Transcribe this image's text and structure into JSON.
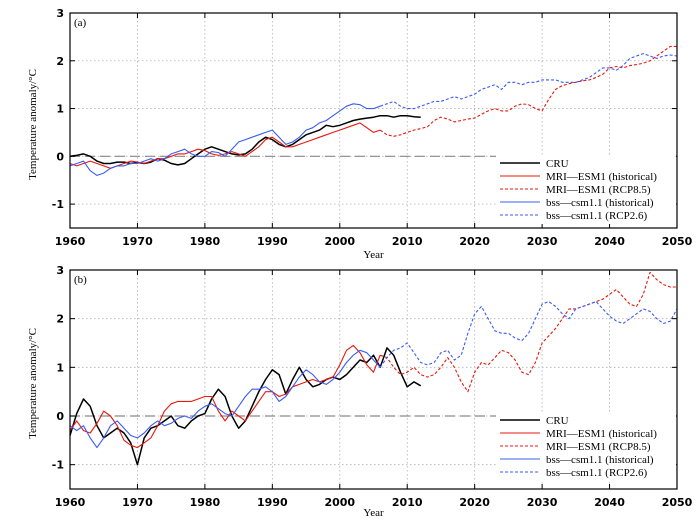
{
  "chart_data": [
    {
      "type": "line",
      "panel_label": "(a)",
      "xlabel": "Year",
      "ylabel": "Temperature anomaly/°C",
      "xlim": [
        1960,
        2050
      ],
      "ylim": [
        -1.5,
        3
      ],
      "xticks": [
        1960,
        1970,
        1980,
        1990,
        2000,
        2010,
        2020,
        2030,
        2040,
        2050
      ],
      "yticks": [
        -1,
        0,
        1,
        2,
        3
      ],
      "grid": true,
      "legend_position": "bottom-right",
      "zero_line": true,
      "series": [
        {
          "name": "CRU",
          "color": "#000000",
          "dash": "solid",
          "x": [
            1960,
            1961,
            1962,
            1963,
            1964,
            1965,
            1966,
            1967,
            1968,
            1969,
            1970,
            1971,
            1972,
            1973,
            1974,
            1975,
            1976,
            1977,
            1978,
            1979,
            1980,
            1981,
            1982,
            1983,
            1984,
            1985,
            1986,
            1987,
            1988,
            1989,
            1990,
            1991,
            1992,
            1993,
            1994,
            1995,
            1996,
            1997,
            1998,
            1999,
            2000,
            2001,
            2002,
            2003,
            2004,
            2005,
            2006,
            2007,
            2008,
            2009,
            2010,
            2011,
            2012
          ],
          "y": [
            0.0,
            0.02,
            0.05,
            0.0,
            -0.1,
            -0.15,
            -0.15,
            -0.12,
            -0.12,
            -0.15,
            -0.13,
            -0.15,
            -0.12,
            -0.05,
            -0.08,
            -0.15,
            -0.18,
            -0.15,
            -0.05,
            0.05,
            0.15,
            0.2,
            0.15,
            0.1,
            0.05,
            0.03,
            0.05,
            0.15,
            0.3,
            0.4,
            0.35,
            0.25,
            0.2,
            0.25,
            0.35,
            0.45,
            0.5,
            0.55,
            0.65,
            0.62,
            0.65,
            0.7,
            0.75,
            0.78,
            0.8,
            0.82,
            0.85,
            0.85,
            0.82,
            0.85,
            0.85,
            0.83,
            0.82
          ]
        },
        {
          "name": "MRI—ESM1 (historical)",
          "color": "#e8180c",
          "dash": "solid",
          "x": [
            1960,
            1961,
            1962,
            1963,
            1964,
            1965,
            1966,
            1967,
            1968,
            1969,
            1970,
            1971,
            1972,
            1973,
            1974,
            1975,
            1976,
            1977,
            1978,
            1979,
            1980,
            1981,
            1982,
            1983,
            1984,
            1985,
            1986,
            1987,
            1988,
            1989,
            1990,
            1991,
            1992,
            1993,
            1994,
            1995,
            1996,
            1997,
            1998,
            1999,
            2000,
            2001,
            2002,
            2003,
            2004,
            2005,
            2006
          ],
          "y": [
            -0.15,
            -0.2,
            -0.15,
            -0.1,
            -0.15,
            -0.2,
            -0.25,
            -0.2,
            -0.15,
            -0.1,
            -0.12,
            -0.15,
            -0.1,
            -0.05,
            -0.05,
            0.0,
            0.05,
            0.05,
            0.1,
            0.15,
            0.12,
            0.05,
            0.02,
            0.05,
            0.1,
            0.05,
            0.0,
            0.1,
            0.2,
            0.35,
            0.4,
            0.3,
            0.2,
            0.2,
            0.25,
            0.3,
            0.35,
            0.4,
            0.45,
            0.5,
            0.55,
            0.6,
            0.65,
            0.7,
            0.6,
            0.5,
            0.55
          ]
        },
        {
          "name": "MRI—ESM1 (RCP8.5)",
          "color": "#e8180c",
          "dash": "dashed",
          "x": [
            2006,
            2007,
            2008,
            2009,
            2010,
            2011,
            2012,
            2013,
            2014,
            2015,
            2016,
            2017,
            2018,
            2019,
            2020,
            2021,
            2022,
            2023,
            2024,
            2025,
            2026,
            2027,
            2028,
            2029,
            2030,
            2031,
            2032,
            2033,
            2034,
            2035,
            2036,
            2037,
            2038,
            2039,
            2040,
            2041,
            2042,
            2043,
            2044,
            2045,
            2046,
            2047,
            2048,
            2049,
            2050
          ],
          "y": [
            0.55,
            0.45,
            0.42,
            0.45,
            0.5,
            0.55,
            0.58,
            0.62,
            0.75,
            0.82,
            0.78,
            0.72,
            0.75,
            0.78,
            0.8,
            0.88,
            0.95,
            1.0,
            0.95,
            0.95,
            1.05,
            1.1,
            1.08,
            1.0,
            0.95,
            1.2,
            1.4,
            1.48,
            1.52,
            1.55,
            1.58,
            1.6,
            1.65,
            1.72,
            1.85,
            1.88,
            1.85,
            1.9,
            1.92,
            1.95,
            2.0,
            2.1,
            2.2,
            2.3,
            2.3
          ]
        },
        {
          "name": "bss—csm1.1 (historical)",
          "color": "#3a5cf5",
          "dash": "solid",
          "x": [
            1960,
            1961,
            1962,
            1963,
            1964,
            1965,
            1966,
            1967,
            1968,
            1969,
            1970,
            1971,
            1972,
            1973,
            1974,
            1975,
            1976,
            1977,
            1978,
            1979,
            1980,
            1981,
            1982,
            1983,
            1984,
            1985,
            1986,
            1987,
            1988,
            1989,
            1990,
            1991,
            1992,
            1993,
            1994,
            1995,
            1996,
            1997,
            1998,
            1999,
            2000,
            2001,
            2002,
            2003,
            2004,
            2005,
            2006
          ],
          "y": [
            -0.2,
            -0.15,
            -0.1,
            -0.3,
            -0.4,
            -0.35,
            -0.25,
            -0.2,
            -0.2,
            -0.15,
            -0.15,
            -0.1,
            -0.05,
            -0.1,
            -0.05,
            0.05,
            0.1,
            0.15,
            0.05,
            0.0,
            0.0,
            0.1,
            0.08,
            0.0,
            0.15,
            0.3,
            0.35,
            0.4,
            0.45,
            0.5,
            0.55,
            0.4,
            0.25,
            0.3,
            0.4,
            0.55,
            0.6,
            0.7,
            0.75,
            0.85,
            0.95,
            1.05,
            1.1,
            1.08,
            1.0,
            1.0,
            1.05
          ]
        },
        {
          "name": "bss—csm1.1 (RCP2.6)",
          "color": "#3a5cf5",
          "dash": "dashed",
          "x": [
            2006,
            2007,
            2008,
            2009,
            2010,
            2011,
            2012,
            2013,
            2014,
            2015,
            2016,
            2017,
            2018,
            2019,
            2020,
            2021,
            2022,
            2023,
            2024,
            2025,
            2026,
            2027,
            2028,
            2029,
            2030,
            2031,
            2032,
            2033,
            2034,
            2035,
            2036,
            2037,
            2038,
            2039,
            2040,
            2041,
            2042,
            2043,
            2044,
            2045,
            2046,
            2047,
            2048,
            2049,
            2050
          ],
          "y": [
            1.05,
            1.1,
            1.15,
            1.05,
            1.0,
            1.0,
            1.05,
            1.1,
            1.15,
            1.15,
            1.2,
            1.25,
            1.2,
            1.25,
            1.3,
            1.4,
            1.45,
            1.5,
            1.4,
            1.55,
            1.55,
            1.5,
            1.55,
            1.55,
            1.6,
            1.6,
            1.6,
            1.55,
            1.55,
            1.55,
            1.6,
            1.65,
            1.75,
            1.85,
            1.85,
            1.8,
            1.9,
            2.05,
            2.1,
            2.15,
            2.1,
            2.05,
            2.1,
            2.12,
            2.1
          ]
        }
      ]
    },
    {
      "type": "line",
      "panel_label": "(b)",
      "xlabel": "Year",
      "ylabel": "Temperature anomaly/°C",
      "xlim": [
        1960,
        2050
      ],
      "ylim": [
        -1.5,
        3
      ],
      "xticks": [
        1960,
        1970,
        1980,
        1990,
        2000,
        2010,
        2020,
        2030,
        2040,
        2050
      ],
      "yticks": [
        -1,
        0,
        1,
        2,
        3
      ],
      "grid": true,
      "legend_position": "bottom-right",
      "zero_line": true,
      "series": [
        {
          "name": "CRU",
          "color": "#000000",
          "dash": "solid",
          "x": [
            1960,
            1961,
            1962,
            1963,
            1964,
            1965,
            1966,
            1967,
            1968,
            1969,
            1970,
            1971,
            1972,
            1973,
            1974,
            1975,
            1976,
            1977,
            1978,
            1979,
            1980,
            1981,
            1982,
            1983,
            1984,
            1985,
            1986,
            1987,
            1988,
            1989,
            1990,
            1991,
            1992,
            1993,
            1994,
            1995,
            1996,
            1997,
            1998,
            1999,
            2000,
            2001,
            2002,
            2003,
            2004,
            2005,
            2006,
            2007,
            2008,
            2009,
            2010,
            2011,
            2012
          ],
          "y": [
            -0.4,
            0.05,
            0.35,
            0.2,
            -0.2,
            -0.45,
            -0.35,
            -0.25,
            -0.35,
            -0.55,
            -1.0,
            -0.45,
            -0.25,
            -0.2,
            -0.1,
            0.0,
            -0.2,
            -0.25,
            -0.1,
            0.0,
            0.05,
            0.35,
            0.55,
            0.4,
            0.0,
            -0.25,
            -0.1,
            0.2,
            0.5,
            0.75,
            0.95,
            0.85,
            0.45,
            0.75,
            1.0,
            0.75,
            0.6,
            0.65,
            0.75,
            0.8,
            0.75,
            0.85,
            1.0,
            1.15,
            1.1,
            1.25,
            1.0,
            1.4,
            1.25,
            0.9,
            0.6,
            0.7,
            0.62
          ]
        },
        {
          "name": "MRI—ESM1 (historical)",
          "color": "#e8180c",
          "dash": "solid",
          "x": [
            1960,
            1961,
            1962,
            1963,
            1964,
            1965,
            1966,
            1967,
            1968,
            1969,
            1970,
            1971,
            1972,
            1973,
            1974,
            1975,
            1976,
            1977,
            1978,
            1979,
            1980,
            1981,
            1982,
            1983,
            1984,
            1985,
            1986,
            1987,
            1988,
            1989,
            1990,
            1991,
            1992,
            1993,
            1994,
            1995,
            1996,
            1997,
            1998,
            1999,
            2000,
            2001,
            2002,
            2003,
            2004,
            2005,
            2006
          ],
          "y": [
            -0.3,
            -0.1,
            -0.3,
            -0.35,
            -0.15,
            0.1,
            0.0,
            -0.2,
            -0.5,
            -0.6,
            -0.65,
            -0.55,
            -0.45,
            -0.2,
            0.1,
            0.25,
            0.3,
            0.3,
            0.3,
            0.35,
            0.4,
            0.4,
            0.1,
            -0.1,
            0.1,
            0.0,
            -0.1,
            0.1,
            0.3,
            0.5,
            0.5,
            0.4,
            0.45,
            0.6,
            0.65,
            0.7,
            0.75,
            0.7,
            0.75,
            0.8,
            1.05,
            1.35,
            1.45,
            1.3,
            1.05,
            0.9,
            1.25
          ]
        },
        {
          "name": "MRI—ESM1 (RCP8.5)",
          "color": "#e8180c",
          "dash": "dashed",
          "x": [
            2006,
            2007,
            2008,
            2009,
            2010,
            2011,
            2012,
            2013,
            2014,
            2015,
            2016,
            2017,
            2018,
            2019,
            2020,
            2021,
            2022,
            2023,
            2024,
            2025,
            2026,
            2027,
            2028,
            2029,
            2030,
            2031,
            2032,
            2033,
            2034,
            2035,
            2036,
            2037,
            2038,
            2039,
            2040,
            2041,
            2042,
            2043,
            2044,
            2045,
            2046,
            2047,
            2048,
            2049,
            2050
          ],
          "y": [
            1.25,
            1.2,
            1.0,
            0.85,
            0.9,
            1.0,
            0.85,
            0.8,
            0.85,
            1.0,
            1.2,
            1.0,
            0.7,
            0.5,
            0.9,
            1.1,
            1.05,
            1.2,
            1.35,
            1.3,
            1.15,
            0.9,
            0.85,
            1.1,
            1.5,
            1.65,
            1.8,
            2.0,
            2.2,
            2.2,
            2.25,
            2.3,
            2.35,
            2.4,
            2.5,
            2.6,
            2.45,
            2.3,
            2.25,
            2.5,
            2.95,
            2.8,
            2.7,
            2.65,
            2.65
          ]
        },
        {
          "name": "bss—csm1.1 (historical)",
          "color": "#3a5cf5",
          "dash": "solid",
          "x": [
            1960,
            1961,
            1962,
            1963,
            1964,
            1965,
            1966,
            1967,
            1968,
            1969,
            1970,
            1971,
            1972,
            1973,
            1974,
            1975,
            1976,
            1977,
            1978,
            1979,
            1980,
            1981,
            1982,
            1983,
            1984,
            1985,
            1986,
            1987,
            1988,
            1989,
            1990,
            1991,
            1992,
            1993,
            1994,
            1995,
            1996,
            1997,
            1998,
            1999,
            2000,
            2001,
            2002,
            2003,
            2004,
            2005,
            2006
          ],
          "y": [
            -0.2,
            -0.3,
            -0.2,
            -0.45,
            -0.65,
            -0.45,
            -0.2,
            -0.1,
            -0.25,
            -0.4,
            -0.45,
            -0.35,
            -0.2,
            -0.1,
            -0.2,
            -0.15,
            -0.05,
            0.0,
            -0.05,
            0.1,
            0.2,
            0.25,
            0.15,
            0.05,
            0.0,
            0.2,
            0.4,
            0.55,
            0.55,
            0.6,
            0.5,
            0.3,
            0.4,
            0.6,
            0.8,
            0.95,
            0.85,
            0.7,
            0.65,
            0.75,
            0.9,
            1.1,
            1.25,
            1.35,
            1.3,
            1.15,
            1.0
          ]
        },
        {
          "name": "bss—csm1.1 (RCP2.6)",
          "color": "#3a5cf5",
          "dash": "dashed",
          "x": [
            2006,
            2007,
            2008,
            2009,
            2010,
            2011,
            2012,
            2013,
            2014,
            2015,
            2016,
            2017,
            2018,
            2019,
            2020,
            2021,
            2022,
            2023,
            2024,
            2025,
            2026,
            2027,
            2028,
            2029,
            2030,
            2031,
            2032,
            2033,
            2034,
            2035,
            2036,
            2037,
            2038,
            2039,
            2040,
            2041,
            2042,
            2043,
            2044,
            2045,
            2046,
            2047,
            2048,
            2049,
            2050
          ],
          "y": [
            1.0,
            1.2,
            1.35,
            1.4,
            1.5,
            1.3,
            1.1,
            1.05,
            1.1,
            1.3,
            1.35,
            1.15,
            1.25,
            1.7,
            2.1,
            2.25,
            2.0,
            1.75,
            1.7,
            1.7,
            1.6,
            1.55,
            1.7,
            2.0,
            2.3,
            2.35,
            2.25,
            2.1,
            2.0,
            2.2,
            2.25,
            2.3,
            2.35,
            2.2,
            2.05,
            1.95,
            1.9,
            2.0,
            2.1,
            2.2,
            2.15,
            2.0,
            1.9,
            1.95,
            2.2
          ]
        }
      ]
    }
  ]
}
